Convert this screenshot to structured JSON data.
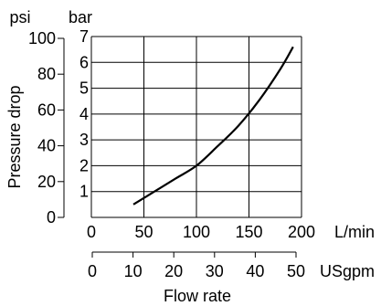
{
  "chart_data": {
    "type": "line",
    "title": "",
    "xlabel": "Flow rate",
    "ylabel": "Pressure drop",
    "unit_left_outer": "psi",
    "unit_left_inner": "bar",
    "unit_bottom_primary": "L/min",
    "unit_bottom_secondary": "USgpm",
    "ylim_bar": [
      0,
      7
    ],
    "ylim_psi": [
      0,
      100
    ],
    "xlim_lmin": [
      0,
      200
    ],
    "xlim_usgpm": [
      0,
      50
    ],
    "yticks_bar": [
      "1",
      "2",
      "3",
      "4",
      "5",
      "6",
      "7"
    ],
    "yticks_psi": [
      "0",
      "20",
      "40",
      "60",
      "80",
      "100"
    ],
    "xticks_lmin": [
      "0",
      "50",
      "100",
      "150",
      "200"
    ],
    "xticks_usgpm": [
      "0",
      "10",
      "20",
      "30",
      "40",
      "50"
    ],
    "grid": true,
    "series": [
      {
        "x": [
          40,
          60,
          80,
          100,
          120,
          140,
          160,
          180,
          192
        ],
        "y": [
          0.5,
          1.0,
          1.5,
          2.0,
          2.75,
          3.55,
          4.55,
          5.75,
          6.6
        ]
      }
    ]
  }
}
